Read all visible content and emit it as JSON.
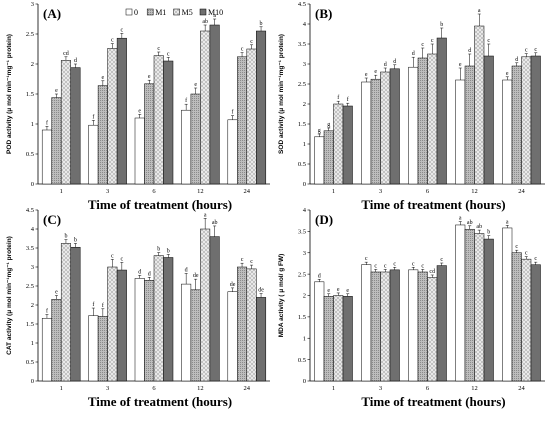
{
  "series_names": [
    "0",
    "M1",
    "M5",
    "M10"
  ],
  "colors": {
    "s0": "#ffffff",
    "s1": "#bdbdbd",
    "s2": "#e9e9e9",
    "s3": "#6f6f6f",
    "axis": "#000000"
  },
  "chart_data": [
    {
      "type": "bar",
      "panel_label": "(A)",
      "categories": [
        "1",
        "3",
        "6",
        "12",
        "24"
      ],
      "ylabel": "POD activity (μ mol min⁻¹mg⁻¹ protein)",
      "xlabel": "Time of treatment (hours)",
      "ylim": [
        0,
        3
      ],
      "yticks": [
        "0",
        "0.5",
        "1",
        "1.5",
        "2",
        "2.5",
        "3"
      ],
      "legend": "top",
      "series": [
        {
          "name": "0",
          "values": [
            0.9,
            0.98,
            1.1,
            1.23,
            1.07
          ]
        },
        {
          "name": "M1",
          "values": [
            1.44,
            1.64,
            1.67,
            1.5,
            2.12
          ]
        },
        {
          "name": "M5",
          "values": [
            2.06,
            2.26,
            2.14,
            2.55,
            2.25
          ]
        },
        {
          "name": "M10",
          "values": [
            1.94,
            2.43,
            2.05,
            2.65,
            2.55
          ]
        }
      ],
      "letters": [
        [
          "f",
          "e",
          "cd",
          "d"
        ],
        [
          "f",
          "e",
          "c",
          "c"
        ],
        [
          "e",
          "e",
          "c",
          "c"
        ],
        [
          "f",
          "e",
          "ab",
          "a"
        ],
        [
          "f",
          "c",
          "c",
          "b"
        ]
      ],
      "errors": [
        0.06,
        0.08,
        0.06,
        0.1,
        0.07
      ]
    },
    {
      "type": "bar",
      "panel_label": "(B)",
      "categories": [
        "1",
        "3",
        "6",
        "12",
        "24"
      ],
      "ylabel": "SOD activity (μ mol min⁻¹mg⁻¹ protein)",
      "xlabel": "Time of treatment (hours)",
      "ylim": [
        0,
        4.5
      ],
      "yticks": [
        "0",
        "0.5",
        "1",
        "1.5",
        "2",
        "2.5",
        "3",
        "3.5",
        "4",
        "4.5"
      ],
      "series": [
        {
          "name": "0",
          "values": [
            1.18,
            2.55,
            2.92,
            2.6,
            2.6
          ]
        },
        {
          "name": "M1",
          "values": [
            1.33,
            2.62,
            3.15,
            2.95,
            2.95
          ]
        },
        {
          "name": "M5",
          "values": [
            2.0,
            2.8,
            3.25,
            3.95,
            3.18
          ]
        },
        {
          "name": "M10",
          "values": [
            1.95,
            2.88,
            3.65,
            3.2,
            3.2
          ]
        }
      ],
      "letters": [
        [
          "g",
          "g",
          "f",
          "f"
        ],
        [
          "e",
          "e",
          "d",
          "d"
        ],
        [
          "d",
          "c",
          "c",
          "b"
        ],
        [
          "e",
          "d",
          "a",
          "c"
        ],
        [
          "e",
          "d",
          "c",
          "c"
        ]
      ],
      "errors": [
        0.07,
        0.1,
        0.25,
        0.3,
        0.08
      ]
    },
    {
      "type": "bar",
      "panel_label": "(C)",
      "categories": [
        "1",
        "3",
        "6",
        "12",
        "24"
      ],
      "ylabel": "CAT activity (μ mol min⁻¹mg⁻¹ protein)",
      "xlabel": "Time of treatment (hours)",
      "ylim": [
        0,
        4.5
      ],
      "yticks": [
        "0",
        "0.5",
        "1",
        "1.5",
        "2",
        "2.5",
        "3",
        "3.5",
        "4",
        "4.5"
      ],
      "series": [
        {
          "name": "0",
          "values": [
            1.65,
            1.72,
            2.7,
            2.55,
            2.35
          ]
        },
        {
          "name": "M1",
          "values": [
            2.15,
            1.7,
            2.65,
            2.4,
            3.0
          ]
        },
        {
          "name": "M5",
          "values": [
            3.62,
            3.0,
            3.3,
            4.0,
            2.95
          ]
        },
        {
          "name": "M10",
          "values": [
            3.52,
            2.92,
            3.25,
            3.8,
            2.2
          ]
        }
      ],
      "letters": [
        [
          "f",
          "e",
          "b",
          "b"
        ],
        [
          "f",
          "f",
          "c",
          "c"
        ],
        [
          "d",
          "d",
          "b",
          "b"
        ],
        [
          "d",
          "de",
          "a",
          "ab"
        ],
        [
          "de",
          "c",
          "c",
          "de"
        ]
      ],
      "errors": [
        0.1,
        0.2,
        0.08,
        0.28,
        0.1
      ]
    },
    {
      "type": "bar",
      "panel_label": "(D)",
      "categories": [
        "1",
        "3",
        "6",
        "12",
        "24"
      ],
      "ylabel": "MDA activity  ( μ mol/ g FW)",
      "xlabel": "Time of treatment (hours)",
      "ylim": [
        0,
        4
      ],
      "yticks": [
        "0",
        "0.5",
        "1",
        "1.5",
        "2",
        "2.5",
        "3",
        "3.5",
        "4"
      ],
      "series": [
        {
          "name": "0",
          "values": [
            2.32,
            2.72,
            2.6,
            3.65,
            3.58
          ]
        },
        {
          "name": "M1",
          "values": [
            1.98,
            2.55,
            2.55,
            3.55,
            3.0
          ]
        },
        {
          "name": "M5",
          "values": [
            2.0,
            2.55,
            2.42,
            3.45,
            2.85
          ]
        },
        {
          "name": "M10",
          "values": [
            1.98,
            2.6,
            2.7,
            3.32,
            2.72
          ]
        }
      ],
      "letters": [
        [
          "d",
          "e",
          "e",
          "e"
        ],
        [
          "c",
          "c",
          "c",
          "c"
        ],
        [
          "c",
          "c",
          "cd",
          "c"
        ],
        [
          "a",
          "ab",
          "ab",
          "b"
        ],
        [
          "a",
          "c",
          "c",
          "c"
        ]
      ],
      "errors": [
        0.06,
        0.06,
        0.06,
        0.08,
        0.06
      ]
    }
  ]
}
